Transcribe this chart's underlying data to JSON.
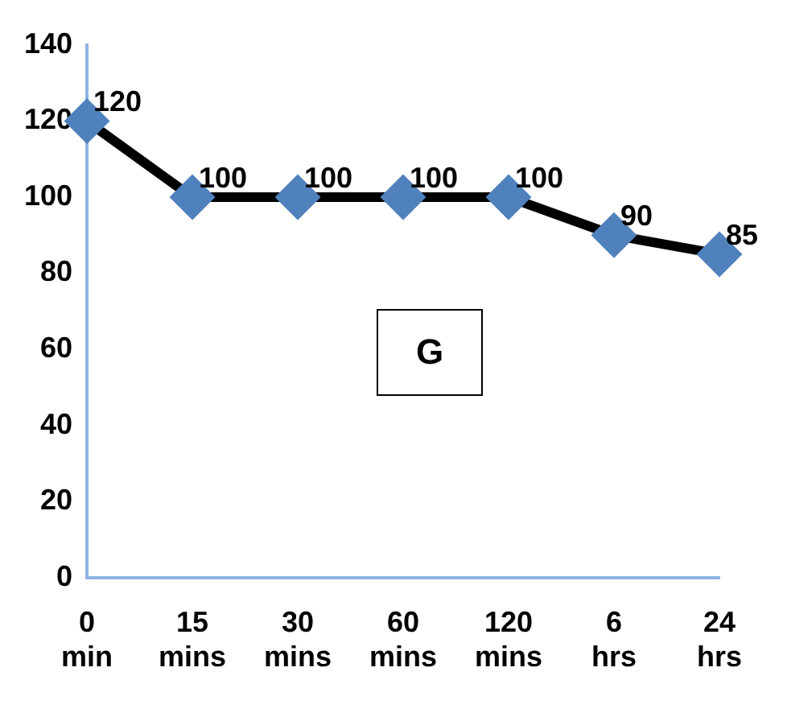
{
  "chart_data": {
    "type": "line",
    "categories": [
      "0 min",
      "15 mins",
      "30 mins",
      "60 mins",
      "120 mins",
      "6 hrs",
      "24 hrs"
    ],
    "series": [
      {
        "color": "#000000",
        "colors": [
          "#4f81bd",
          "#4f81bd",
          "#4f81bd",
          "#4f81bd",
          "#4f81bd",
          "#4f81bd",
          "#4f81bd"
        ],
        "values": [
          120,
          100,
          100,
          100,
          100,
          90,
          85
        ]
      }
    ],
    "marker": "diamond",
    "ylim": [
      0,
      140
    ],
    "yticks": [
      0,
      20,
      40,
      60,
      80,
      100,
      120,
      140
    ],
    "grid": false,
    "legend": false,
    "data_labels": true,
    "annotations": [
      "G"
    ]
  }
}
